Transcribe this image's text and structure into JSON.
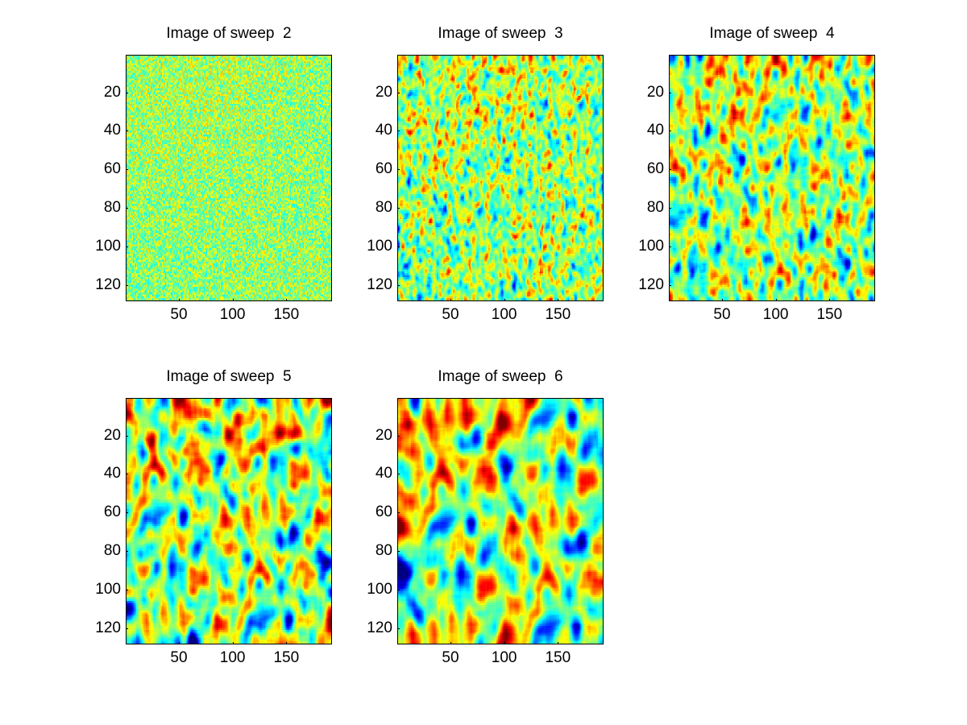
{
  "chart_data": [
    {
      "type": "heatmap",
      "title": "Image of sweep  2",
      "xlabel": "",
      "ylabel": "",
      "xlim": [
        0.5,
        192.5
      ],
      "ylim": [
        0.5,
        128.5
      ],
      "y_reversed": true,
      "x_ticks": [
        50,
        100,
        150
      ],
      "y_ticks": [
        20,
        40,
        60,
        80,
        100,
        120
      ],
      "colormap": "jet",
      "pattern": {
        "seed": 2,
        "x_correlation": 1,
        "y_correlation": 1,
        "noise_amplitude": 0.55,
        "trend": 0.1
      }
    },
    {
      "type": "heatmap",
      "title": "Image of sweep  3",
      "xlabel": "",
      "ylabel": "",
      "xlim": [
        0.5,
        192.5
      ],
      "ylim": [
        0.5,
        128.5
      ],
      "y_reversed": true,
      "x_ticks": [
        50,
        100,
        150
      ],
      "y_ticks": [
        20,
        40,
        60,
        80,
        100,
        120
      ],
      "colormap": "jet",
      "pattern": {
        "seed": 3,
        "x_correlation": 2,
        "y_correlation": 2,
        "noise_amplitude": 0.7,
        "trend": 0.18
      }
    },
    {
      "type": "heatmap",
      "title": "Image of sweep  4",
      "xlabel": "",
      "ylabel": "",
      "xlim": [
        0.5,
        192.5
      ],
      "ylim": [
        0.5,
        128.5
      ],
      "y_reversed": true,
      "x_ticks": [
        50,
        100,
        150
      ],
      "y_ticks": [
        20,
        40,
        60,
        80,
        100,
        120
      ],
      "colormap": "jet",
      "pattern": {
        "seed": 4,
        "x_correlation": 3,
        "y_correlation": 3,
        "noise_amplitude": 0.85,
        "trend": 0.26
      }
    },
    {
      "type": "heatmap",
      "title": "Image of sweep  5",
      "xlabel": "",
      "ylabel": "",
      "xlim": [
        0.5,
        192.5
      ],
      "ylim": [
        0.5,
        128.5
      ],
      "y_reversed": true,
      "x_ticks": [
        50,
        100,
        150
      ],
      "y_ticks": [
        20,
        40,
        60,
        80,
        100,
        120
      ],
      "colormap": "jet",
      "pattern": {
        "seed": 5,
        "x_correlation": 4,
        "y_correlation": 4,
        "noise_amplitude": 1.0,
        "trend": 0.34
      }
    },
    {
      "type": "heatmap",
      "title": "Image of sweep  6",
      "xlabel": "",
      "ylabel": "",
      "xlim": [
        0.5,
        192.5
      ],
      "ylim": [
        0.5,
        128.5
      ],
      "y_reversed": true,
      "x_ticks": [
        50,
        100,
        150
      ],
      "y_ticks": [
        20,
        40,
        60,
        80,
        100,
        120
      ],
      "colormap": "jet",
      "pattern": {
        "seed": 6,
        "x_correlation": 5,
        "y_correlation": 5,
        "noise_amplitude": 1.1,
        "trend": 0.42
      }
    }
  ]
}
